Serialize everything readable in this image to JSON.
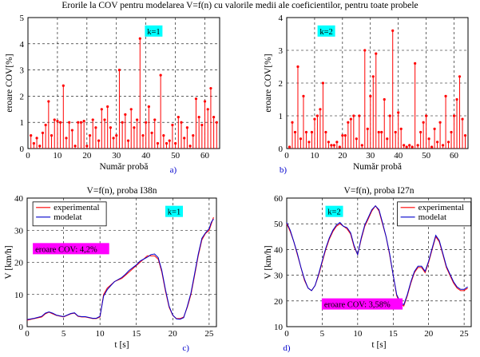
{
  "page_title": "Erorile la COV pentru modelarea V=f(n) cu valorile medii ale coeficientilor, pentru toate probele",
  "colors": {
    "stem": "#ff0000",
    "experimental": "#ff0000",
    "modelat": "#0000cc",
    "k_box": "#00ffff",
    "error_box": "#ff00ff",
    "grid": "#000000"
  },
  "chart_data": [
    {
      "id": "a",
      "type": "stem",
      "panel_label": "a)",
      "title": "",
      "xlabel": "Număr probă",
      "ylabel": "eroare COV[%]",
      "xlim": [
        0,
        65
      ],
      "ylim": [
        0,
        5
      ],
      "xticks": [
        0,
        10,
        20,
        30,
        40,
        50,
        60
      ],
      "yticks": [
        0,
        1,
        2,
        3,
        4,
        5
      ],
      "grid": true,
      "tag": "k=1",
      "x": [
        1,
        2,
        3,
        4,
        5,
        6,
        7,
        8,
        9,
        10,
        11,
        12,
        13,
        14,
        15,
        16,
        17,
        18,
        19,
        20,
        21,
        22,
        23,
        24,
        25,
        26,
        27,
        28,
        29,
        30,
        31,
        32,
        33,
        34,
        35,
        36,
        37,
        38,
        39,
        40,
        41,
        42,
        43,
        44,
        45,
        46,
        47,
        48,
        49,
        50,
        51,
        52,
        53,
        54,
        55,
        56,
        57,
        58,
        59,
        60,
        61,
        62,
        63,
        64
      ],
      "values": [
        0.5,
        0.2,
        0.4,
        0.1,
        0.6,
        0.9,
        1.8,
        0.5,
        1.1,
        1.05,
        1.0,
        2.4,
        0.4,
        1.0,
        0.7,
        0.1,
        1.0,
        1.0,
        1.05,
        0.1,
        0.5,
        1.1,
        0.8,
        0.3,
        1.5,
        1.1,
        1.6,
        0.8,
        0.4,
        0.5,
        3.0,
        1.0,
        1.3,
        0.3,
        1.5,
        0.8,
        1.1,
        4.2,
        0.5,
        1.0,
        1.6,
        0.6,
        1.1,
        0.2,
        2.8,
        0.5,
        0.2,
        0.3,
        0.9,
        0.2,
        1.2,
        1.0,
        0.4,
        0.8,
        0.1,
        0.5,
        1.9,
        1.2,
        0.9,
        1.8,
        1.5,
        2.3,
        1.2,
        1.0
      ]
    },
    {
      "id": "b",
      "type": "stem",
      "panel_label": "b)",
      "title": "",
      "xlabel": "Număr probă",
      "ylabel": "eroare COV[%]",
      "xlim": [
        0,
        65
      ],
      "ylim": [
        0,
        4
      ],
      "xticks": [
        0,
        10,
        20,
        30,
        40,
        50,
        60
      ],
      "yticks": [
        0,
        1,
        2,
        3,
        4
      ],
      "grid": true,
      "tag": "k=2",
      "x": [
        1,
        2,
        3,
        4,
        5,
        6,
        7,
        8,
        9,
        10,
        11,
        12,
        13,
        14,
        15,
        16,
        17,
        18,
        19,
        20,
        21,
        22,
        23,
        24,
        25,
        26,
        27,
        28,
        29,
        30,
        31,
        32,
        33,
        34,
        35,
        36,
        37,
        38,
        39,
        40,
        41,
        42,
        43,
        44,
        45,
        46,
        47,
        48,
        49,
        50,
        51,
        52,
        53,
        54,
        55,
        56,
        57,
        58,
        59,
        60,
        61,
        62,
        63,
        64
      ],
      "values": [
        0.05,
        0.8,
        0.5,
        2.5,
        0.3,
        1.6,
        0.5,
        0.2,
        0.5,
        0.9,
        1.0,
        1.2,
        2.0,
        0.5,
        0.2,
        0.1,
        0.1,
        0.2,
        0.05,
        0.4,
        0.4,
        0.8,
        0.9,
        1.0,
        0.3,
        1.0,
        0.1,
        3.0,
        0.6,
        1.6,
        2.2,
        2.9,
        0.5,
        0.5,
        1.5,
        0.3,
        1.0,
        3.6,
        0.5,
        1.1,
        0.6,
        0.1,
        0.05,
        0.1,
        0.05,
        2.6,
        0.1,
        0.5,
        0.8,
        1.0,
        0.3,
        0.05,
        0.6,
        0.2,
        0.8,
        0.1,
        1.6,
        0.2,
        0.5,
        1.0,
        1.5,
        2.2,
        0.9,
        0.4
      ]
    },
    {
      "id": "c",
      "type": "line",
      "panel_label": "c)",
      "title": "V=f(n), proba I38n",
      "xlabel": "t [s]",
      "ylabel": "V [km/h]",
      "xlim": [
        0,
        26
      ],
      "ylim": [
        0,
        40
      ],
      "xticks": [
        0,
        5,
        10,
        15,
        20,
        25
      ],
      "yticks": [
        0,
        10,
        20,
        30,
        40
      ],
      "grid": true,
      "tag": "k=1",
      "error_label": "eroare COV: 4,2%",
      "legend": [
        "experimental",
        "modelat"
      ],
      "legend_position": "top-left",
      "series": [
        {
          "name": "experimental",
          "x": [
            0,
            1,
            2,
            2.5,
            3,
            3.5,
            4,
            5,
            6,
            6.5,
            7,
            7.5,
            8,
            9,
            9.5,
            10,
            10.5,
            11,
            11.5,
            12,
            13,
            13.5,
            14,
            15,
            15.5,
            16,
            16.5,
            17,
            17.5,
            18,
            18.5,
            19,
            19.5,
            20,
            20.5,
            21,
            21.5,
            22,
            22.5,
            23,
            23.5,
            24,
            24.5,
            25,
            25.3,
            25.6
          ],
          "y": [
            2,
            2.5,
            3,
            4,
            4.5,
            4,
            3.5,
            3,
            4,
            4.2,
            3.2,
            3,
            3,
            2.5,
            2.5,
            3,
            10,
            12,
            13,
            14,
            15,
            16,
            17,
            19,
            20,
            21,
            22,
            22,
            22,
            21,
            17,
            11,
            6,
            3.5,
            2.5,
            2.5,
            3,
            6,
            10,
            16,
            22,
            27,
            29,
            30,
            32,
            34
          ]
        },
        {
          "name": "modelat",
          "x": [
            0,
            1,
            2,
            2.5,
            3,
            3.5,
            4,
            5,
            6,
            6.5,
            7,
            7.5,
            8,
            9,
            9.5,
            10,
            10.5,
            11,
            11.5,
            12,
            13,
            13.5,
            14,
            15,
            15.5,
            16,
            16.5,
            17,
            17.5,
            18,
            18.5,
            19,
            19.5,
            20,
            20.5,
            21,
            21.5,
            22,
            22.5,
            23,
            23.5,
            24,
            24.5,
            25,
            25.3,
            25.6
          ],
          "y": [
            2.2,
            2.6,
            3.2,
            4.2,
            4.6,
            4.2,
            3.6,
            3.1,
            4.1,
            4.3,
            3.3,
            3.1,
            3.1,
            2.6,
            2.6,
            3.2,
            9.5,
            11.5,
            12.8,
            14,
            15.3,
            16.3,
            17.5,
            19.2,
            20.4,
            21,
            21.6,
            22.4,
            22.6,
            21.5,
            17.5,
            11.5,
            6.3,
            3.6,
            2.4,
            2.3,
            2.8,
            6.3,
            10.5,
            16.5,
            22.5,
            27.5,
            29.2,
            30.5,
            32.5,
            33.5
          ]
        }
      ]
    },
    {
      "id": "d",
      "type": "line",
      "panel_label": "d)",
      "title": "V=f(n), proba I27n",
      "xlabel": "t [s]",
      "ylabel": "V [km/h]",
      "xlim": [
        0,
        26
      ],
      "ylim": [
        10,
        60
      ],
      "xticks": [
        0,
        5,
        10,
        15,
        20,
        25
      ],
      "yticks": [
        10,
        20,
        30,
        40,
        50,
        60
      ],
      "grid": true,
      "tag": "k=2",
      "error_label": "eroare COV: 3,58%",
      "legend": [
        "experimental",
        "modelat"
      ],
      "legend_position": "top-right",
      "series": [
        {
          "name": "experimental",
          "x": [
            0,
            0.5,
            1,
            1.5,
            2,
            2.5,
            3,
            3.5,
            4,
            4.5,
            5,
            5.5,
            6,
            6.5,
            7,
            7.5,
            8,
            8.5,
            9,
            9.5,
            10,
            10.5,
            11,
            11.5,
            12,
            12.5,
            13,
            13.5,
            14,
            14.5,
            15,
            15.5,
            16,
            16.5,
            17,
            17.5,
            18,
            18.5,
            19,
            19.5,
            20,
            20.5,
            21,
            21.5,
            22,
            22.5,
            23,
            23.5,
            24,
            24.5,
            25,
            25.5
          ],
          "y": [
            50,
            47,
            43,
            38,
            33,
            28,
            25,
            24,
            26,
            30,
            35,
            40,
            44,
            47,
            49,
            50,
            49,
            48,
            46,
            41,
            38,
            44,
            49,
            52,
            55,
            57,
            55,
            50,
            45,
            38,
            30,
            22,
            19,
            18,
            22,
            27,
            31,
            33,
            33,
            31,
            35,
            40,
            45,
            43,
            38,
            33,
            30,
            27,
            25,
            24,
            24,
            25
          ]
        },
        {
          "name": "modelat",
          "x": [
            0,
            0.5,
            1,
            1.5,
            2,
            2.5,
            3,
            3.5,
            4,
            4.5,
            5,
            5.5,
            6,
            6.5,
            7,
            7.5,
            8,
            8.5,
            9,
            9.5,
            10,
            10.5,
            11,
            11.5,
            12,
            12.5,
            13,
            13.5,
            14,
            14.5,
            15,
            15.5,
            16,
            16.5,
            17,
            17.5,
            18,
            18.5,
            19,
            19.5,
            20,
            20.5,
            21,
            21.5,
            22,
            22.5,
            23,
            23.5,
            24,
            24.5,
            25,
            25.5
          ],
          "y": [
            50.5,
            47.5,
            43,
            38.5,
            33,
            28.5,
            25,
            24,
            26,
            30.5,
            35.5,
            40.5,
            44.5,
            47.5,
            49.5,
            50.5,
            49,
            48.5,
            46.5,
            41.5,
            38,
            44.5,
            49.5,
            52.5,
            55.5,
            57,
            55.5,
            50.5,
            45,
            38.5,
            30,
            22.5,
            19.5,
            18.5,
            22.5,
            27.5,
            31.5,
            33.5,
            33.5,
            31.5,
            35.5,
            40.5,
            45.5,
            43.5,
            38.5,
            33.5,
            30.5,
            27.5,
            25.5,
            24.5,
            24.5,
            25.5
          ]
        }
      ]
    }
  ]
}
